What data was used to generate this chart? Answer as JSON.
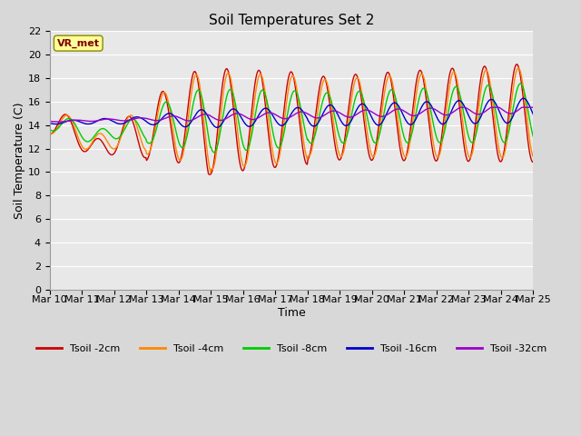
{
  "title": "Soil Temperatures Set 2",
  "xlabel": "Time",
  "ylabel": "Soil Temperature (C)",
  "ylim": [
    0,
    22
  ],
  "yticks": [
    0,
    2,
    4,
    6,
    8,
    10,
    12,
    14,
    16,
    18,
    20,
    22
  ],
  "x_labels": [
    "Mar 10",
    "Mar 11",
    "Mar 12",
    "Mar 13",
    "Mar 14",
    "Mar 15",
    "Mar 16",
    "Mar 17",
    "Mar 18",
    "Mar 19",
    "Mar 20",
    "Mar 21",
    "Mar 22",
    "Mar 23",
    "Mar 24",
    "Mar 25"
  ],
  "colors": {
    "Tsoil -2cm": "#cc0000",
    "Tsoil -4cm": "#ff8800",
    "Tsoil -8cm": "#00cc00",
    "Tsoil -16cm": "#0000cc",
    "Tsoil -32cm": "#9900cc"
  },
  "bg_color": "#d8d8d8",
  "plot_bg": "#e8e8e8",
  "annotation_text": "VR_met",
  "annotation_box_color": "#ffff99",
  "annotation_text_color": "#800000",
  "grid_color": "#ffffff",
  "title_fontsize": 11,
  "label_fontsize": 9,
  "tick_fontsize": 8
}
